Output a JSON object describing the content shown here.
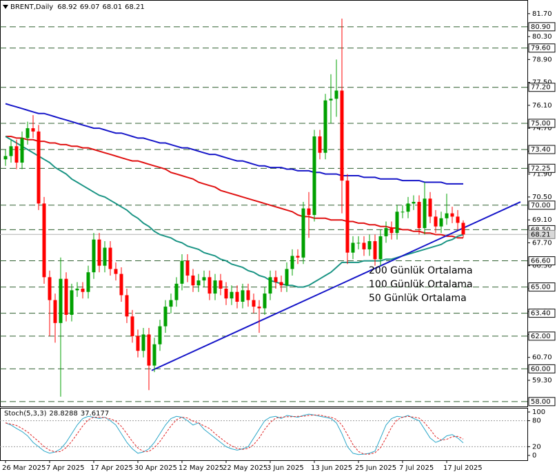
{
  "chart_data": [
    {
      "type": "candlestick",
      "title": "BRENT,Daily",
      "categories": [
        "26 Mar 2025",
        null,
        null,
        null,
        null,
        null,
        null,
        null,
        "7 Apr 2025",
        null,
        null,
        null,
        null,
        null,
        null,
        null,
        "17 Apr 2025",
        null,
        null,
        null,
        null,
        null,
        null,
        null,
        "30 Apr 2025",
        null,
        null,
        null,
        null,
        null,
        null,
        null,
        "12 May 2025",
        null,
        null,
        null,
        null,
        null,
        null,
        null,
        "22 May 2025",
        null,
        null,
        null,
        null,
        null,
        null,
        null,
        "3 Jun 2025",
        null,
        null,
        null,
        null,
        null,
        null,
        null,
        "13 Jun 2025",
        null,
        null,
        null,
        null,
        null,
        null,
        null,
        "25 Jun 2025",
        null,
        null,
        null,
        null,
        null,
        null,
        null,
        "7 Jul 2025",
        null,
        null,
        null,
        null,
        null,
        null,
        null,
        "17 Jul 2025",
        null,
        null,
        null
      ],
      "open": [
        72.8,
        73.0,
        73.6,
        72.6,
        74.1,
        74.7,
        74.5,
        70.1,
        65.6,
        64.2,
        62.8,
        65.5,
        63.3,
        64.8,
        64.9,
        64.7,
        65.9,
        67.9,
        66.3,
        67.4,
        66.1,
        65.8,
        64.5,
        63.2,
        62.0,
        61.1,
        62.1,
        60.2,
        61.5,
        62.6,
        63.8,
        64.2,
        65.2,
        66.6,
        65.7,
        65.1,
        65.4,
        65.6,
        64.6,
        65.4,
        64.9,
        64.3,
        64.7,
        64.1,
        64.8,
        64.2,
        63.8,
        63.7,
        64.6,
        65.6,
        65.3,
        65.1,
        66.1,
        66.9,
        66.8,
        69.8,
        69.4,
        74.2,
        73.2,
        76.4,
        76.5,
        77.0,
        71.5,
        67.1,
        67.7,
        67.7,
        67.3,
        67.8,
        66.7,
        68.1,
        68.6,
        68.3,
        69.6,
        69.6,
        70.1,
        70.2,
        68.6,
        70.4,
        69.3,
        68.7,
        69.2,
        69.5,
        69.3,
        68.92
      ],
      "high": [
        73.4,
        74.0,
        74.0,
        74.5,
        75.1,
        75.5,
        74.9,
        70.5,
        66.0,
        64.6,
        66.8,
        65.9,
        65.2,
        65.3,
        65.3,
        66.3,
        68.3,
        68.3,
        67.8,
        67.8,
        66.5,
        66.2,
        64.9,
        63.6,
        62.4,
        62.5,
        62.5,
        61.9,
        63.0,
        64.2,
        64.6,
        65.6,
        67.0,
        67.0,
        66.1,
        65.8,
        66.0,
        66.0,
        65.8,
        65.8,
        65.3,
        65.1,
        65.1,
        65.2,
        65.2,
        64.6,
        64.2,
        65.0,
        66.0,
        66.0,
        65.7,
        66.5,
        67.3,
        67.3,
        70.2,
        70.8,
        74.6,
        74.6,
        76.8,
        78.0,
        78.9,
        81.4,
        71.9,
        68.1,
        68.1,
        68.1,
        68.2,
        68.2,
        68.5,
        69.0,
        69.0,
        70.0,
        70.0,
        70.5,
        70.6,
        70.6,
        71.4,
        70.8,
        69.7,
        69.6,
        70.7,
        69.9,
        69.7,
        69.07
      ],
      "low": [
        72.4,
        72.6,
        72.2,
        72.2,
        73.7,
        74.1,
        69.7,
        65.2,
        62.0,
        61.6,
        58.3,
        62.9,
        62.9,
        64.4,
        64.3,
        64.3,
        65.5,
        65.9,
        65.9,
        65.7,
        65.4,
        64.1,
        62.8,
        61.6,
        60.7,
        60.7,
        58.7,
        59.8,
        61.1,
        62.2,
        63.4,
        63.8,
        64.8,
        65.3,
        64.7,
        64.7,
        65.0,
        64.2,
        64.2,
        64.5,
        63.9,
        63.9,
        63.7,
        63.7,
        63.8,
        63.4,
        62.2,
        63.3,
        64.2,
        64.9,
        64.7,
        64.7,
        65.7,
        66.4,
        66.4,
        68.0,
        69.0,
        72.8,
        72.8,
        75.0,
        75.4,
        69.5,
        66.4,
        66.7,
        67.3,
        66.9,
        66.9,
        66.3,
        66.3,
        67.7,
        67.9,
        67.9,
        69.2,
        69.2,
        69.7,
        68.2,
        68.2,
        68.9,
        68.3,
        68.3,
        68.8,
        68.9,
        68.5,
        68.01
      ],
      "close": [
        73.0,
        73.6,
        72.6,
        74.1,
        74.7,
        74.5,
        70.1,
        65.6,
        64.2,
        62.8,
        65.5,
        63.3,
        64.8,
        64.9,
        64.7,
        65.9,
        67.9,
        66.3,
        67.4,
        66.1,
        65.8,
        64.5,
        63.2,
        62.0,
        61.1,
        62.1,
        60.2,
        61.5,
        62.6,
        63.8,
        64.2,
        65.2,
        66.6,
        65.7,
        65.1,
        65.4,
        65.6,
        64.6,
        65.4,
        64.9,
        64.3,
        64.7,
        64.1,
        64.8,
        64.2,
        63.8,
        63.7,
        64.6,
        65.6,
        65.3,
        65.1,
        66.1,
        66.9,
        66.8,
        69.8,
        69.4,
        74.2,
        73.2,
        76.4,
        76.5,
        77.0,
        71.5,
        67.1,
        67.7,
        67.7,
        67.3,
        67.8,
        66.7,
        68.1,
        68.6,
        68.3,
        69.6,
        69.6,
        70.1,
        70.2,
        68.6,
        70.4,
        69.3,
        68.7,
        69.2,
        69.5,
        69.3,
        68.92,
        68.21
      ],
      "up_color": "#00a000",
      "down_color": "#ff0000",
      "series": [
        {
          "name": "200 Günlük Ortalama",
          "color": "#1515c8",
          "values": [
            76.2,
            76.1,
            76.0,
            75.9,
            75.8,
            75.7,
            75.6,
            75.6,
            75.5,
            75.4,
            75.3,
            75.2,
            75.1,
            75.0,
            74.9,
            74.8,
            74.7,
            74.7,
            74.6,
            74.5,
            74.4,
            74.4,
            74.3,
            74.2,
            74.1,
            74.1,
            74.0,
            73.9,
            73.8,
            73.8,
            73.7,
            73.6,
            73.5,
            73.5,
            73.4,
            73.3,
            73.2,
            73.1,
            73.1,
            73.0,
            72.9,
            72.8,
            72.7,
            72.7,
            72.6,
            72.5,
            72.4,
            72.4,
            72.3,
            72.3,
            72.3,
            72.2,
            72.2,
            72.1,
            72.1,
            72.1,
            72.0,
            72.0,
            71.9,
            71.9,
            71.9,
            71.8,
            71.8,
            71.8,
            71.8,
            71.7,
            71.7,
            71.7,
            71.6,
            71.6,
            71.6,
            71.6,
            71.5,
            71.5,
            71.5,
            71.5,
            71.4,
            71.4,
            71.4,
            71.4,
            71.3,
            71.3,
            71.3,
            71.3
          ]
        },
        {
          "name": "100 Günlük Ortalama",
          "color": "#e01010",
          "values": [
            74.2,
            74.2,
            74.1,
            74.1,
            74.0,
            74.0,
            73.9,
            73.9,
            73.8,
            73.8,
            73.7,
            73.7,
            73.6,
            73.6,
            73.5,
            73.5,
            73.4,
            73.3,
            73.2,
            73.1,
            73.0,
            72.9,
            72.8,
            72.7,
            72.7,
            72.6,
            72.5,
            72.4,
            72.3,
            72.2,
            72.0,
            71.9,
            71.8,
            71.7,
            71.6,
            71.4,
            71.3,
            71.2,
            71.1,
            70.9,
            70.8,
            70.7,
            70.6,
            70.5,
            70.4,
            70.3,
            70.2,
            70.1,
            70.0,
            69.9,
            69.8,
            69.7,
            69.6,
            69.4,
            69.3,
            69.3,
            69.2,
            69.2,
            69.2,
            69.1,
            69.1,
            69.1,
            69.0,
            69.0,
            68.9,
            68.9,
            68.8,
            68.8,
            68.7,
            68.7,
            68.6,
            68.6,
            68.5,
            68.5,
            68.4,
            68.4,
            68.3,
            68.3,
            68.2,
            68.2,
            68.1,
            68.1,
            68.0,
            68.0
          ]
        },
        {
          "name": "50 Günlük Ortalama",
          "color": "#1a9484",
          "values": [
            74.2,
            74.0,
            73.8,
            73.6,
            73.4,
            73.2,
            73.0,
            72.8,
            72.6,
            72.3,
            72.1,
            71.9,
            71.6,
            71.4,
            71.2,
            71.0,
            70.8,
            70.6,
            70.5,
            70.3,
            70.1,
            69.9,
            69.7,
            69.4,
            69.2,
            68.9,
            68.7,
            68.4,
            68.2,
            68.1,
            68.0,
            67.8,
            67.7,
            67.5,
            67.4,
            67.3,
            67.1,
            67.0,
            66.9,
            66.7,
            66.6,
            66.4,
            66.3,
            66.2,
            66.0,
            65.9,
            65.7,
            65.6,
            65.4,
            65.3,
            65.2,
            65.1,
            65.1,
            65.0,
            65.0,
            65.1,
            65.3,
            65.5,
            65.7,
            65.9,
            66.2,
            66.5,
            66.5,
            66.5,
            66.5,
            66.6,
            66.6,
            66.6,
            66.6,
            66.7,
            66.7,
            66.8,
            66.9,
            67.0,
            67.1,
            67.2,
            67.3,
            67.4,
            67.5,
            67.6,
            67.8,
            67.9,
            68.1,
            68.2
          ]
        }
      ],
      "trendline": {
        "color": "#1515c8",
        "values": [
          59.9,
          70.2
        ]
      },
      "levels": [
        {
          "value": 80.9,
          "label": "80.90"
        },
        {
          "value": 79.6,
          "label": "79.60"
        },
        {
          "value": 77.2,
          "label": "77.20"
        },
        {
          "value": 75.0,
          "label": "75.00"
        },
        {
          "value": 73.4,
          "label": "73.40"
        },
        {
          "value": 72.25,
          "label": "72.25"
        },
        {
          "value": 70.0,
          "label": "70.00"
        },
        {
          "value": 68.5,
          "label": "68.50"
        },
        {
          "value": 66.6,
          "label": "66.60"
        },
        {
          "value": 65.0,
          "label": "65.00"
        },
        {
          "value": 63.4,
          "label": "63.40"
        },
        {
          "value": 62.0,
          "label": "62.00"
        },
        {
          "value": 60.0,
          "label": "60.00"
        },
        {
          "value": 58.0,
          "label": "58.00"
        }
      ],
      "ylim": [
        57.7,
        82.45
      ],
      "yticks": [
        {
          "value": 81.7,
          "label": "81.70"
        },
        {
          "value": 80.3,
          "label": "80.30"
        },
        {
          "value": 78.9,
          "label": "78.90"
        },
        {
          "value": 77.5,
          "label": "77.50"
        },
        {
          "value": 76.1,
          "label": "76.10"
        },
        {
          "value": 74.7,
          "label": "74.70"
        },
        {
          "value": 73.3,
          "label": "73.30"
        },
        {
          "value": 71.9,
          "label": "71.90"
        },
        {
          "value": 70.5,
          "label": "70.50"
        },
        {
          "value": 69.1,
          "label": "69.10"
        },
        {
          "value": 67.7,
          "label": "67.70"
        },
        {
          "value": 66.3,
          "label": "66.30"
        },
        {
          "value": 64.9,
          "label": "64.90"
        },
        {
          "value": 63.5,
          "label": "63.50"
        },
        {
          "value": 62.1,
          "label": "62.10"
        },
        {
          "value": 60.7,
          "label": "60.70"
        },
        {
          "value": 59.3,
          "label": "59.30"
        }
      ]
    },
    {
      "type": "line",
      "title": "Stoch(5,3,3)",
      "series": [
        {
          "name": "Main",
          "color": "#2aa6c8",
          "values": [
            75,
            70,
            62,
            55,
            45,
            30,
            20,
            10,
            5,
            8,
            15,
            30,
            50,
            70,
            85,
            90,
            88,
            85,
            88,
            80,
            70,
            50,
            30,
            15,
            5,
            8,
            15,
            30,
            50,
            70,
            85,
            90,
            88,
            80,
            70,
            75,
            60,
            50,
            40,
            30,
            20,
            15,
            12,
            15,
            20,
            40,
            60,
            80,
            88,
            90,
            85,
            92,
            90,
            88,
            92,
            95,
            93,
            90,
            88,
            85,
            75,
            50,
            20,
            5,
            2,
            3,
            5,
            10,
            40,
            70,
            85,
            90,
            88,
            92,
            85,
            80,
            60,
            40,
            30,
            35,
            45,
            48,
            40,
            28.8288
          ]
        },
        {
          "name": "Signal",
          "color": "#e02020",
          "dashed": true,
          "values": [
            75,
            72,
            69,
            62,
            54,
            43,
            32,
            20,
            12,
            8,
            9,
            18,
            32,
            50,
            68,
            82,
            88,
            88,
            87,
            84,
            79,
            67,
            50,
            32,
            17,
            9,
            9,
            18,
            32,
            50,
            68,
            82,
            88,
            86,
            79,
            75,
            68,
            62,
            50,
            40,
            30,
            22,
            16,
            14,
            16,
            25,
            40,
            60,
            76,
            86,
            88,
            89,
            89,
            90,
            90,
            92,
            93,
            93,
            90,
            88,
            83,
            70,
            48,
            25,
            9,
            3,
            3,
            6,
            18,
            40,
            65,
            82,
            88,
            90,
            88,
            86,
            75,
            60,
            43,
            35,
            37,
            43,
            44,
            37.6177
          ]
        }
      ],
      "levels": [
        20,
        80
      ],
      "ylim": [
        0,
        100
      ],
      "yticks": [
        0,
        20,
        80,
        100
      ]
    }
  ]
}
